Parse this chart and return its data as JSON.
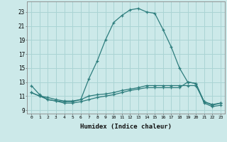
{
  "xlabel": "Humidex (Indice chaleur)",
  "ylabel": "",
  "background_color": "#cce9e9",
  "grid_color": "#aad4d4",
  "line_color": "#2d7d7d",
  "xlim": [
    -0.5,
    23.5
  ],
  "ylim": [
    8.5,
    24.5
  ],
  "yticks": [
    9,
    11,
    13,
    15,
    17,
    19,
    21,
    23
  ],
  "xticks": [
    0,
    1,
    2,
    3,
    4,
    5,
    6,
    7,
    8,
    9,
    10,
    11,
    12,
    13,
    14,
    15,
    16,
    17,
    18,
    19,
    20,
    21,
    22,
    23
  ],
  "series": [
    {
      "x": [
        0,
        1,
        2,
        3,
        4,
        5,
        6,
        7,
        8,
        9,
        10,
        11,
        12,
        13,
        14,
        15,
        16,
        17,
        18,
        19,
        20,
        21,
        22,
        23
      ],
      "y": [
        12.5,
        11.2,
        10.5,
        10.3,
        10.2,
        10.2,
        10.5,
        13.5,
        16.0,
        19.0,
        21.5,
        22.5,
        23.3,
        23.5,
        23.0,
        22.8,
        20.5,
        18.0,
        15.0,
        13.0,
        12.8,
        10.2,
        9.8,
        10.0
      ]
    },
    {
      "x": [
        0,
        1,
        2,
        3,
        4,
        5,
        6,
        7,
        8,
        9,
        10,
        11,
        12,
        13,
        14,
        15,
        16,
        17,
        18,
        19,
        20,
        21,
        22,
        23
      ],
      "y": [
        11.5,
        11.0,
        10.8,
        10.5,
        10.3,
        10.3,
        10.5,
        11.0,
        11.2,
        11.3,
        11.5,
        11.8,
        12.0,
        12.2,
        12.5,
        12.5,
        12.5,
        12.5,
        12.5,
        12.5,
        12.5,
        10.2,
        9.7,
        10.0
      ]
    },
    {
      "x": [
        0,
        1,
        2,
        3,
        4,
        5,
        6,
        7,
        8,
        9,
        10,
        11,
        12,
        13,
        14,
        15,
        16,
        17,
        18,
        19,
        20,
        21,
        22,
        23
      ],
      "y": [
        11.5,
        11.0,
        10.5,
        10.3,
        10.0,
        10.0,
        10.2,
        10.5,
        10.8,
        11.0,
        11.2,
        11.5,
        11.8,
        12.0,
        12.2,
        12.2,
        12.2,
        12.2,
        12.2,
        13.0,
        12.8,
        10.0,
        9.5,
        9.7
      ]
    }
  ]
}
